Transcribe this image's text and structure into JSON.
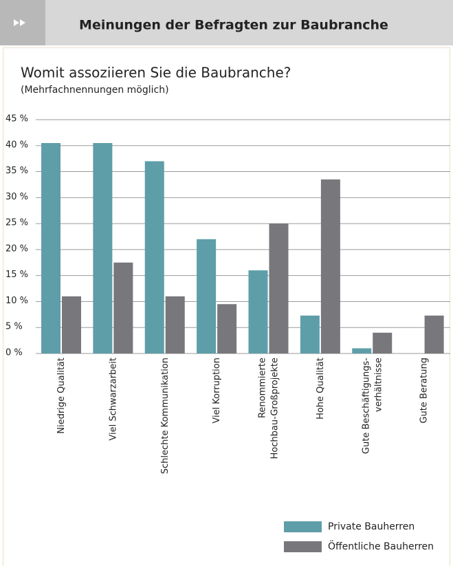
{
  "header": {
    "title": "Meinungen der Befragten zur Baubranche"
  },
  "chart_data": {
    "type": "bar",
    "title": "Womit assoziieren Sie die Baubranche?",
    "subtitle": "(Mehrfachnennungen möglich)",
    "categories": [
      "Niedrige Qualität",
      "Viel Schwarzarbeit",
      "Schlechte Kommunikation",
      "Viel Korruption",
      "Renommierte\nHochbau-Großprojekte",
      "Hohe Qualität",
      "Gute Beschäftigungs-\nverhältnisse",
      "Gute Beratung"
    ],
    "series": [
      {
        "name": "Private Bauherren",
        "color": "#5e9ea9",
        "values": [
          40.5,
          40.5,
          37,
          22,
          16,
          7.3,
          1,
          0
        ]
      },
      {
        "name": "Öffentliche Bauherren",
        "color": "#78777c",
        "values": [
          11,
          17.5,
          11,
          9.5,
          25,
          33.5,
          4,
          7.3
        ]
      }
    ],
    "ylim": [
      0,
      45
    ],
    "yticks": [
      {
        "value": 0,
        "label": "0 %"
      },
      {
        "value": 5,
        "label": "5 %"
      },
      {
        "value": 10,
        "label": "10 %"
      },
      {
        "value": 15,
        "label": "15 %"
      },
      {
        "value": 20,
        "label": "20 %"
      },
      {
        "value": 25,
        "label": "25 %"
      },
      {
        "value": 30,
        "label": "30 %"
      },
      {
        "value": 35,
        "label": "35 %"
      },
      {
        "value": 40,
        "label": "40 %"
      },
      {
        "value": 45,
        "label": "45 %"
      }
    ],
    "grid": true
  }
}
